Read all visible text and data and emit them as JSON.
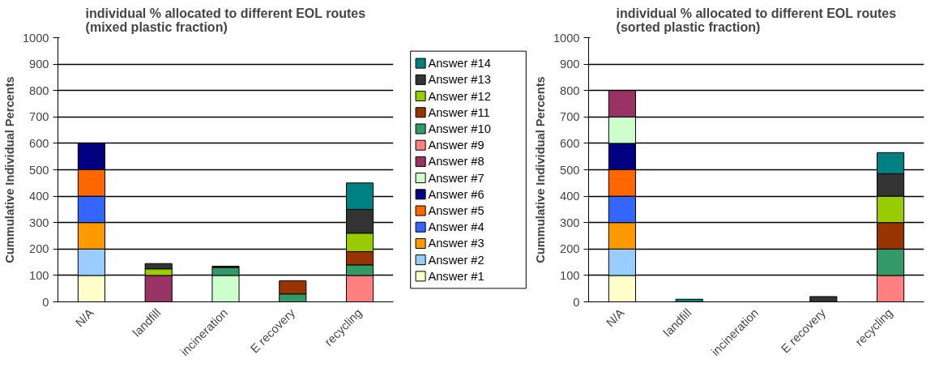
{
  "chart_data": [
    {
      "type": "bar",
      "stacked": true,
      "title": "individual % allocated to different EOL routes\n(mixed plastic fraction)",
      "ylabel": "Cummulative Individual Percents",
      "categories": [
        "N/A",
        "landfill",
        "incineration",
        "E recovery",
        "recycling"
      ],
      "ylim": [
        0,
        1000
      ],
      "yticks": [
        0,
        100,
        200,
        300,
        400,
        500,
        600,
        700,
        800,
        900,
        1000
      ],
      "grid": "y",
      "legend": "right",
      "series": [
        {
          "name": "Answer #1",
          "color": "#ffffcc",
          "values": [
            100,
            null,
            null,
            null,
            null
          ]
        },
        {
          "name": "Answer #2",
          "color": "#99ccff",
          "values": [
            100,
            null,
            null,
            null,
            null
          ]
        },
        {
          "name": "Answer #3",
          "color": "#ff9900",
          "values": [
            100,
            null,
            null,
            null,
            null
          ]
        },
        {
          "name": "Answer #4",
          "color": "#3366ff",
          "values": [
            100,
            null,
            null,
            null,
            null
          ]
        },
        {
          "name": "Answer #5",
          "color": "#ff6600",
          "values": [
            100,
            null,
            null,
            null,
            null
          ]
        },
        {
          "name": "Answer #6",
          "color": "#000080",
          "values": [
            100,
            null,
            null,
            null,
            null
          ]
        },
        {
          "name": "Answer #7",
          "color": "#ccffcc",
          "values": [
            null,
            null,
            100,
            null,
            null
          ]
        },
        {
          "name": "Answer #8",
          "color": "#993366",
          "values": [
            null,
            100,
            null,
            null,
            null
          ]
        },
        {
          "name": "Answer #9",
          "color": "#ff8080",
          "values": [
            null,
            null,
            null,
            null,
            100
          ]
        },
        {
          "name": "Answer #10",
          "color": "#339966",
          "values": [
            null,
            null,
            30,
            30,
            40
          ]
        },
        {
          "name": "Answer #11",
          "color": "#993300",
          "values": [
            null,
            null,
            null,
            50,
            50
          ]
        },
        {
          "name": "Answer #12",
          "color": "#99cc00",
          "values": [
            null,
            25,
            null,
            null,
            70
          ]
        },
        {
          "name": "Answer #13",
          "color": "#333333",
          "values": [
            null,
            20,
            5,
            null,
            90
          ]
        },
        {
          "name": "Answer #14",
          "color": "#008080",
          "values": [
            null,
            null,
            null,
            null,
            100
          ]
        }
      ]
    },
    {
      "type": "bar",
      "stacked": true,
      "title": "individual % allocated to different EOL routes\n(sorted plastic fraction)",
      "ylabel": "Cummulative Individual Percents",
      "categories": [
        "N/A",
        "landfill",
        "incineration",
        "E recovery",
        "recycling"
      ],
      "ylim": [
        0,
        1000
      ],
      "yticks": [
        0,
        100,
        200,
        300,
        400,
        500,
        600,
        700,
        800,
        900,
        1000
      ],
      "grid": "y",
      "series": [
        {
          "color": "#ffffcc",
          "values": [
            100,
            null,
            null,
            null,
            null
          ]
        },
        {
          "color": "#99ccff",
          "values": [
            100,
            null,
            null,
            null,
            null
          ]
        },
        {
          "color": "#ff9900",
          "values": [
            100,
            null,
            null,
            null,
            null
          ]
        },
        {
          "color": "#3366ff",
          "values": [
            100,
            null,
            null,
            null,
            null
          ]
        },
        {
          "color": "#ff6600",
          "values": [
            100,
            null,
            null,
            null,
            null
          ]
        },
        {
          "color": "#000080",
          "values": [
            100,
            null,
            null,
            null,
            null
          ]
        },
        {
          "color": "#ccffcc",
          "values": [
            100,
            null,
            null,
            null,
            null
          ]
        },
        {
          "color": "#993366",
          "values": [
            100,
            null,
            null,
            null,
            null
          ]
        },
        {
          "color": "#ff8080",
          "values": [
            null,
            null,
            null,
            null,
            100
          ]
        },
        {
          "color": "#339966",
          "values": [
            null,
            null,
            null,
            null,
            100
          ]
        },
        {
          "color": "#993300",
          "values": [
            null,
            null,
            null,
            null,
            100
          ]
        },
        {
          "color": "#99cc00",
          "values": [
            null,
            null,
            null,
            null,
            100
          ]
        },
        {
          "color": "#333333",
          "values": [
            null,
            null,
            null,
            20,
            85
          ]
        },
        {
          "color": "#008080",
          "values": [
            null,
            10,
            null,
            null,
            80
          ]
        }
      ]
    }
  ]
}
